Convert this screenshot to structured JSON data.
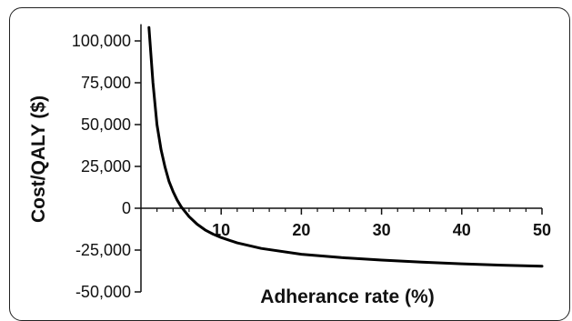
{
  "chart_data": {
    "type": "line",
    "title": "",
    "xlabel": "Adherance rate (%)",
    "ylabel": "Cost/QALY ($)",
    "xlim": [
      0,
      50
    ],
    "ylim": [
      -50000,
      110000
    ],
    "x_ticks": [
      10,
      20,
      30,
      40,
      50
    ],
    "x_tick_labels": [
      "10",
      "20",
      "30",
      "40",
      "50"
    ],
    "y_ticks": [
      100000,
      75000,
      50000,
      25000,
      0,
      -25000,
      -50000
    ],
    "y_tick_labels": [
      "100,000",
      "75,000",
      "50,000",
      "25,000",
      "0",
      "-25,000",
      "-50,000"
    ],
    "grid": false,
    "series": [
      {
        "color": "#000000",
        "x": [
          1,
          1.5,
          2,
          2.5,
          3,
          3.5,
          4,
          4.5,
          5,
          6,
          7,
          8,
          9,
          10,
          12,
          15,
          20,
          25,
          30,
          35,
          40,
          45,
          50
        ],
        "y": [
          108000,
          75000,
          50000,
          35000,
          24500,
          16000,
          10000,
          5000,
          1000,
          -5000,
          -9500,
          -13000,
          -15500,
          -17500,
          -20700,
          -24000,
          -27500,
          -29500,
          -31000,
          -32200,
          -33200,
          -34000,
          -34600
        ]
      }
    ]
  }
}
